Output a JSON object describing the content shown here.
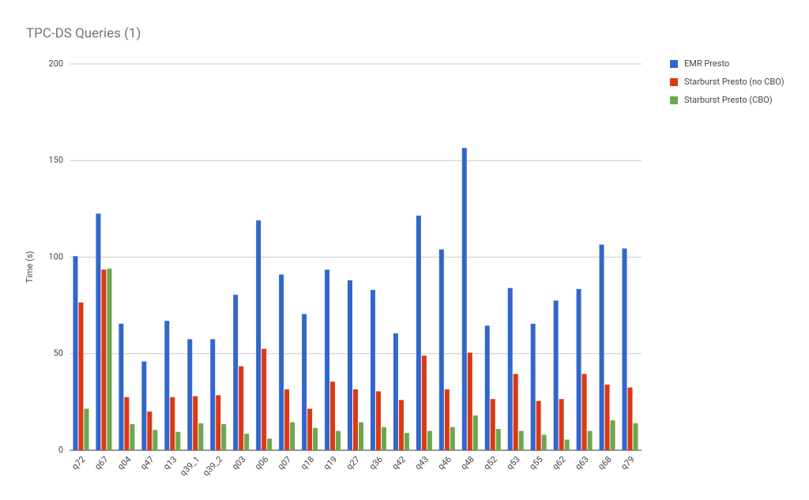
{
  "chart_data": {
    "type": "bar",
    "title": "TPC-DS Queries (1)",
    "y_label": "Time (s)",
    "categories": [
      "q72",
      "q67",
      "q04",
      "q47",
      "q13",
      "q39_1",
      "q39_2",
      "q03",
      "q06",
      "q07",
      "q18",
      "q19",
      "q27",
      "q36",
      "q42",
      "q43",
      "q46",
      "q48",
      "q52",
      "q53",
      "q55",
      "q62",
      "q63",
      "q68",
      "q79"
    ],
    "series": [
      {
        "name": "EMR Presto",
        "color": "#3366cc",
        "values": [
          100.5,
          122.5,
          65.5,
          46,
          67,
          57.5,
          57.5,
          80.5,
          119,
          91,
          70.5,
          93.5,
          88,
          83,
          60.5,
          121.5,
          104,
          156.5,
          64.5,
          84,
          65.5,
          77.5,
          83.5,
          106.5,
          104.5
        ]
      },
      {
        "name": "Starburst Presto (no CBO)",
        "color": "#dc3912",
        "values": [
          76.5,
          93.5,
          27.5,
          20,
          27.5,
          28,
          28.5,
          43.5,
          52.5,
          31.5,
          21.5,
          35.5,
          31.5,
          30.5,
          26,
          49,
          31.5,
          50.5,
          26.5,
          39.5,
          25.5,
          26.5,
          39.5,
          34,
          32.5
        ]
      },
      {
        "name": "Starburst Presto (CBO)",
        "color": "#6aa84f",
        "values": [
          21.5,
          94,
          13.5,
          10.5,
          9.5,
          14,
          13.5,
          8.5,
          6,
          14.5,
          11.5,
          10,
          14.5,
          12,
          9,
          10,
          12,
          18,
          11,
          10,
          8,
          5.5,
          10,
          15.5,
          14
        ]
      }
    ],
    "ylim": [
      0,
      200
    ],
    "yticks": [
      0,
      50,
      100,
      150,
      200
    ],
    "grid": true,
    "legend": "right"
  }
}
